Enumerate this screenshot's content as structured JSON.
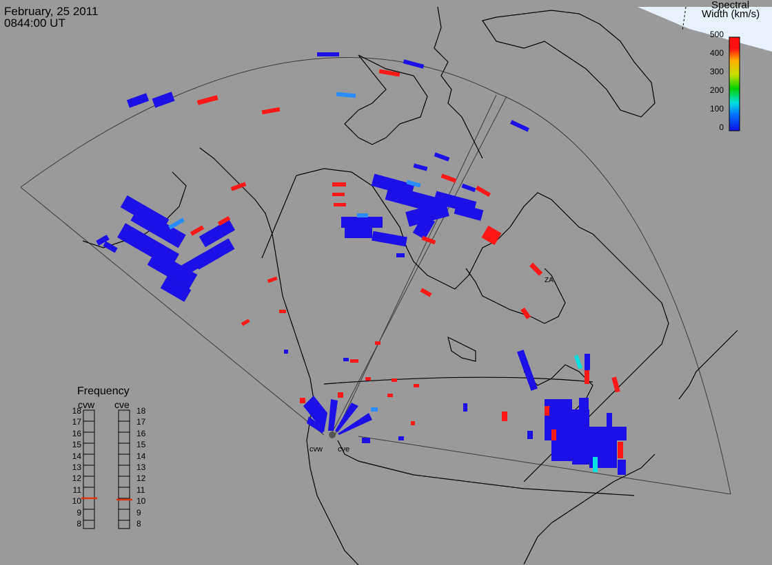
{
  "header": {
    "date": "February, 25 2011",
    "time": "0844:00 UT"
  },
  "colorbar": {
    "title_line1": "Spectral",
    "title_line2": "Width (km/s)",
    "ticks": [
      "500",
      "400",
      "300",
      "200",
      "100",
      "0"
    ],
    "range": [
      0,
      500
    ],
    "colors": [
      "#1010e8",
      "#0078ff",
      "#00e0e0",
      "#00d000",
      "#c8e000",
      "#ffb000",
      "#ff1010"
    ]
  },
  "frequency_panel": {
    "title": "Frequency",
    "radars": [
      {
        "name": "cvw",
        "value": 11
      },
      {
        "name": "cve",
        "value": 11
      }
    ],
    "ticks": [
      "18",
      "17",
      "16",
      "15",
      "14",
      "13",
      "12",
      "11",
      "10",
      "9",
      "8"
    ],
    "range": [
      8,
      18
    ],
    "marker_color": "#e23010"
  },
  "stations": [
    {
      "name": "cvw"
    },
    {
      "name": "cve"
    }
  ],
  "map_colors": {
    "background": "#9a9a9a",
    "coast": "#000000",
    "ice": "#e8f2ff",
    "fov": "#303030",
    "low_width": "#1c10e6",
    "medium_width": "#2a8cff",
    "high_width": "#ff1818"
  },
  "map_labels": {
    "lake_label": "ZA"
  }
}
